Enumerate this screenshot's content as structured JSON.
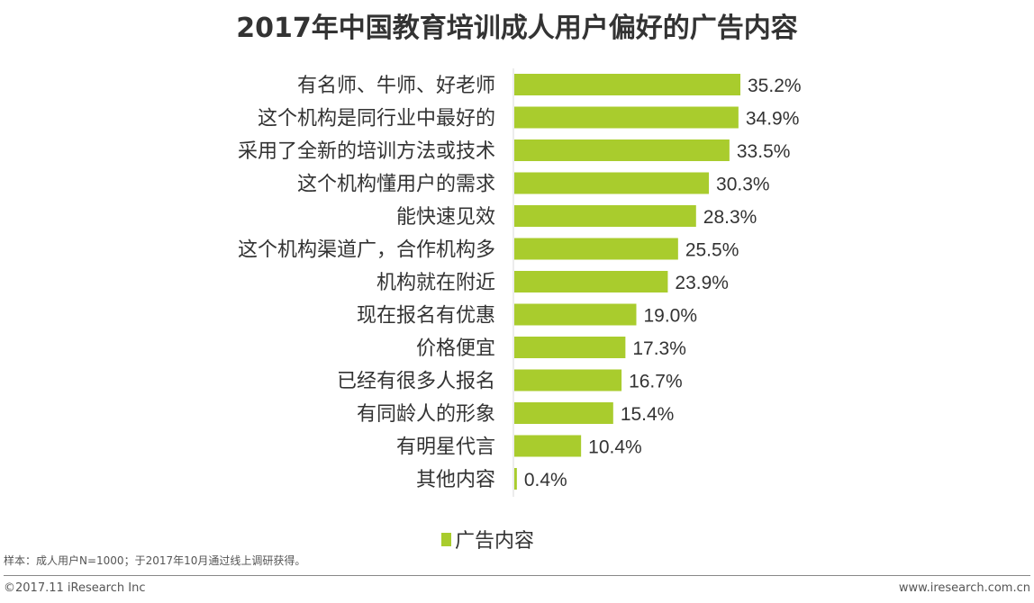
{
  "chart_data": {
    "type": "bar",
    "orientation": "horizontal",
    "title": "2017年中国教育培训成人用户偏好的广告内容",
    "categories": [
      "有名师、牛师、好老师",
      "这个机构是同行业中最好的",
      "采用了全新的培训方法或技术",
      "这个机构懂用户的需求",
      "能快速见效",
      "这个机构渠道广，合作机构多",
      "机构就在附近",
      "现在报名有优惠",
      "价格便宜",
      "已经有很多人报名",
      "有同龄人的形象",
      "有明星代言",
      "其他内容"
    ],
    "series": [
      {
        "name": "广告内容",
        "values": [
          35.2,
          34.9,
          33.5,
          30.3,
          28.3,
          25.5,
          23.9,
          19.0,
          17.3,
          16.7,
          15.4,
          10.4,
          0.4
        ],
        "color": "#a9cc2d"
      }
    ],
    "data_labels": [
      "35.2%",
      "34.9%",
      "33.5%",
      "30.3%",
      "28.3%",
      "25.5%",
      "23.9%",
      "19.0%",
      "17.3%",
      "16.7%",
      "15.4%",
      "10.4%",
      "0.4%"
    ],
    "unit": "%",
    "xlim": [
      0,
      40
    ],
    "grid": false,
    "legend": "bottom"
  },
  "footer": {
    "note": "样本：成人用户N=1000；于2017年10月通过线上调研获得。",
    "copyright": "©2017.11 iResearch Inc",
    "website": "www.iresearch.com.cn"
  }
}
